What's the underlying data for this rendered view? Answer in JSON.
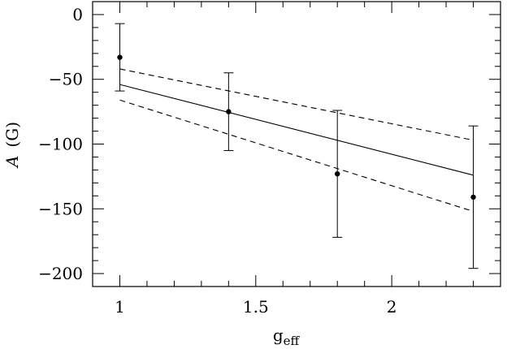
{
  "chart_data": {
    "type": "scatter",
    "title": "",
    "xlabel": "g",
    "xlabel_subscript": "eff",
    "ylabel_symbol": "A",
    "ylabel_unit": "(G)",
    "xlim": [
      0.9,
      2.4
    ],
    "ylim": [
      -210,
      10
    ],
    "x_ticks": [
      1,
      1.5,
      2
    ],
    "x_tick_labels": [
      "1",
      "1.5",
      "2"
    ],
    "y_ticks": [
      0,
      -50,
      -100,
      -150,
      -200
    ],
    "y_tick_labels": [
      "0",
      "−50",
      "−100",
      "−150",
      "−200"
    ],
    "x_minor_step": 0.1,
    "y_minor_step": 10,
    "grid": false,
    "legend": "none",
    "points": [
      {
        "x": 1.0,
        "y": -33,
        "err_low": -59,
        "err_high": -7
      },
      {
        "x": 1.4,
        "y": -75,
        "err_low": -105,
        "err_high": -45
      },
      {
        "x": 1.8,
        "y": -123,
        "err_low": -172,
        "err_high": -74
      },
      {
        "x": 2.3,
        "y": -141,
        "err_low": -196,
        "err_high": -86
      }
    ],
    "fit_line": {
      "x": [
        1.0,
        2.3
      ],
      "y": [
        -54,
        -124
      ]
    },
    "fit_upper": {
      "x": [
        1.0,
        2.3
      ],
      "y": [
        -42,
        -97
      ]
    },
    "fit_lower": {
      "x": [
        1.0,
        2.3
      ],
      "y": [
        -66,
        -152
      ]
    }
  }
}
